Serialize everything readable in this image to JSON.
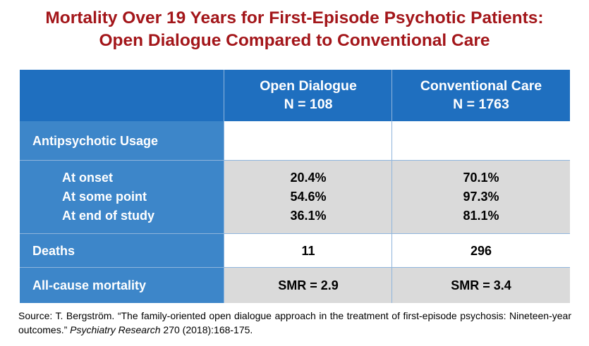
{
  "title": {
    "line1": "Mortality Over 19 Years for First-Episode Psychotic Patients:",
    "line2": "Open Dialogue Compared to Conventional Care"
  },
  "table": {
    "columns": [
      {
        "name": "Open Dialogue",
        "n": "N = 108"
      },
      {
        "name": "Conventional Care",
        "n": "N = 1763"
      }
    ],
    "antipsychotic_label": "Antipsychotic Usage",
    "sub_rows": [
      {
        "label": "At onset",
        "open": "20.4%",
        "conv": "70.1%"
      },
      {
        "label": "At some point",
        "open": "54.6%",
        "conv": "97.3%"
      },
      {
        "label": "At end of study",
        "open": "36.1%",
        "conv": "81.1%"
      }
    ],
    "deaths": {
      "label": "Deaths",
      "open": "11",
      "conv": "296"
    },
    "mortality": {
      "label": "All-cause mortality",
      "open": "SMR = 2.9",
      "conv": "SMR = 3.4"
    }
  },
  "source": {
    "prefix": "Source: T. Bergström. “The family-oriented open dialogue approach in the treatment of first-episode psychosis: Nineteen-year outcomes.” ",
    "journal": "Psychiatry Research",
    "suffix": " 270 (2018):168-175."
  },
  "colors": {
    "title": "#a3161a",
    "header_bg": "#1f6fbf",
    "label_bg": "#3d86c9",
    "gray_bg": "#dadada"
  }
}
